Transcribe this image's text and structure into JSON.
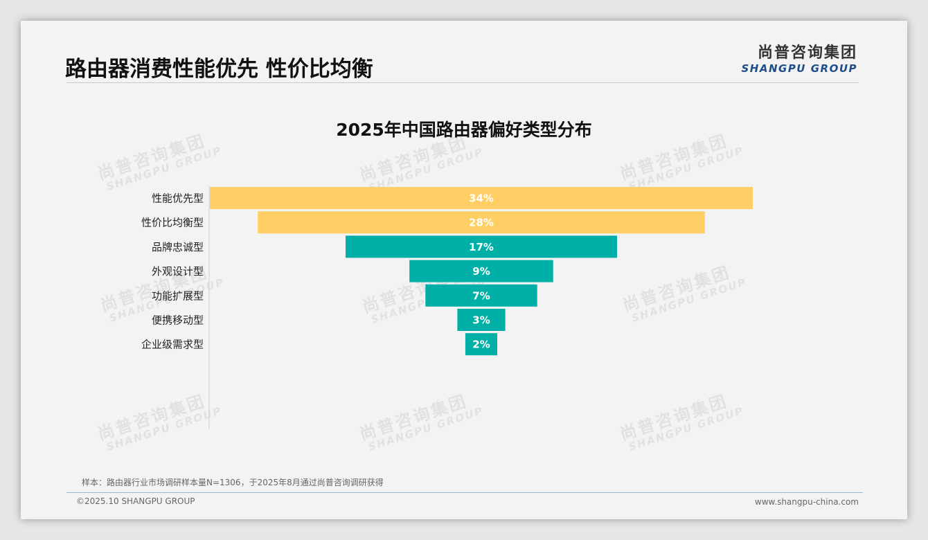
{
  "header": {
    "title": "路由器消费性能优先 性价比均衡",
    "logo_cn": "尚普咨询集团",
    "logo_en": "SHANGPU GROUP"
  },
  "watermark": {
    "cn": "尚普咨询集团",
    "en": "SHANGPU GROUP"
  },
  "chart_data": {
    "type": "bar",
    "subtype": "funnel",
    "title": "2025年中国路由器偏好类型分布",
    "categories": [
      "性能优先型",
      "性价比均衡型",
      "品牌忠诚型",
      "外观设计型",
      "功能扩展型",
      "便携移动型",
      "企业级需求型"
    ],
    "values": [
      34,
      28,
      17,
      9,
      7,
      3,
      2
    ],
    "value_labels": [
      "34%",
      "28%",
      "17%",
      "9%",
      "7%",
      "3%",
      "2%"
    ],
    "unit": "%",
    "colors": [
      "#FFCF66",
      "#FFCF66",
      "#00AFA5",
      "#00AFA5",
      "#00AFA5",
      "#00AFA5",
      "#00AFA5"
    ],
    "xlim": [
      0,
      34
    ],
    "grid": false,
    "legend": "none"
  },
  "footer": {
    "note": "样本：路由器行业市场调研样本量N=1306，于2025年8月通过尚普咨询调研获得",
    "copyright": "©2025.10 SHANGPU GROUP",
    "website": "www.shangpu-china.com"
  }
}
